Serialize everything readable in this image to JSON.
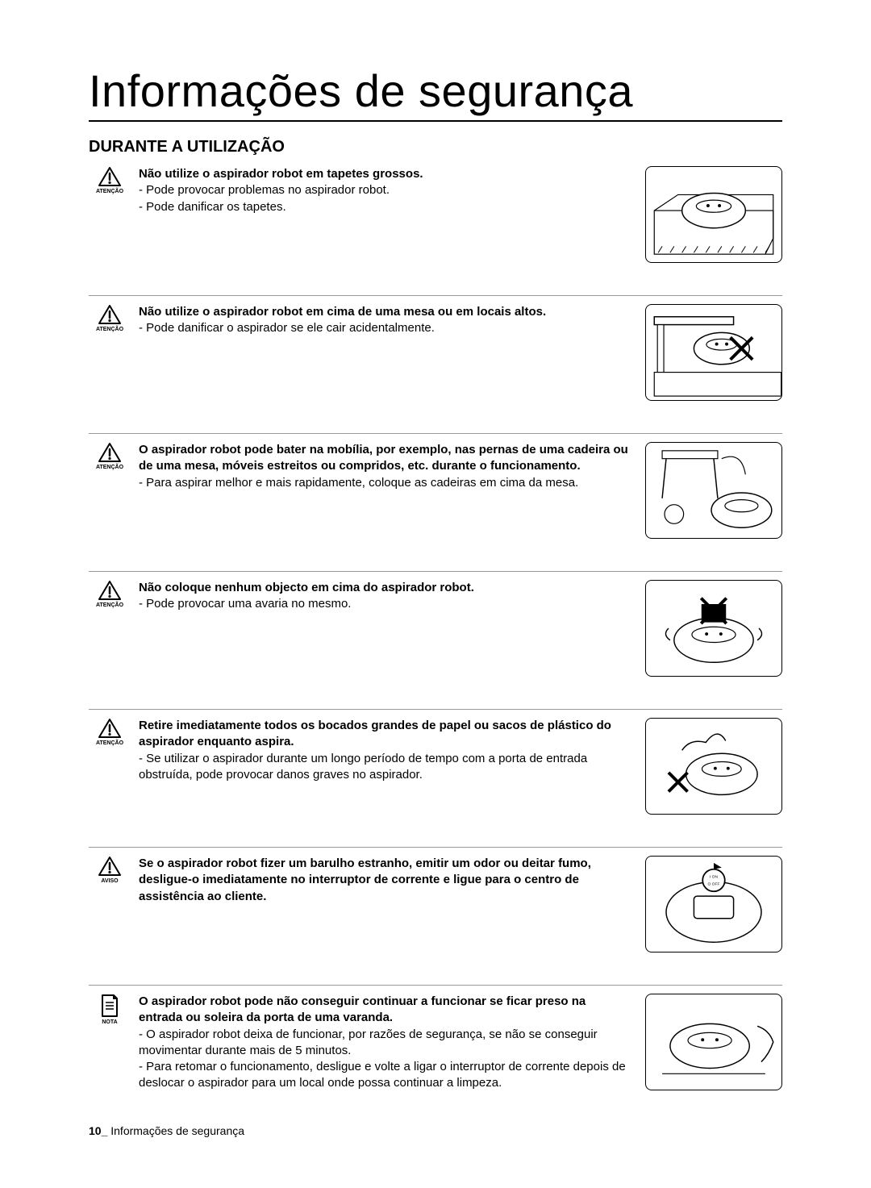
{
  "page": {
    "title": "Informações de segurança",
    "section": "DURANTE A UTILIZAÇÃO",
    "footer_page": "10_",
    "footer_text": "Informações de segurança"
  },
  "labels": {
    "atencao": "ATENÇÃO",
    "aviso": "AVISO",
    "nota": "NOTA"
  },
  "colors": {
    "text": "#000000",
    "border": "#999999",
    "page_bg": "#ffffff"
  },
  "typography": {
    "title_fontsize": 56,
    "section_fontsize": 20,
    "body_fontsize": 15,
    "icon_label_fontsize": 7,
    "footer_fontsize": 14
  },
  "items": [
    {
      "icon": "caution",
      "icon_label_key": "atencao",
      "bold": "Não utilize o aspirador robot em tapetes grossos.",
      "details": [
        "- Pode provocar problemas no aspirador robot.",
        "- Pode danificar os tapetes."
      ],
      "illustration": "robot-on-carpet"
    },
    {
      "icon": "caution",
      "icon_label_key": "atencao",
      "bold": "Não utilize o aspirador robot em cima de uma mesa ou em locais altos.",
      "details": [
        "- Pode danificar o aspirador se ele cair acidentalmente."
      ],
      "illustration": "robot-falling-table"
    },
    {
      "icon": "caution",
      "icon_label_key": "atencao",
      "bold": "O aspirador robot pode bater na mobília, por exemplo, nas pernas de uma cadeira ou de uma mesa, móveis estreitos ou compridos, etc. durante o funcionamento.",
      "details": [
        "- Para aspirar melhor e mais rapidamente, coloque as cadeiras em cima da mesa."
      ],
      "illustration": "robot-chair-legs"
    },
    {
      "icon": "caution",
      "icon_label_key": "atencao",
      "bold": "Não coloque nenhum objecto em cima do aspirador robot.",
      "details": [
        "- Pode provocar uma avaria no mesmo."
      ],
      "illustration": "robot-object-on-top"
    },
    {
      "icon": "caution",
      "icon_label_key": "atencao",
      "bold": "Retire imediatamente todos os bocados grandes de papel ou sacos de plástico do aspirador enquanto aspira.",
      "details": [
        "- Se utilizar o aspirador durante um longo período de tempo com a porta de entrada obstruída, pode provocar danos graves no aspirador."
      ],
      "illustration": "robot-paper-stuck"
    },
    {
      "icon": "caution",
      "icon_label_key": "aviso",
      "bold": "Se o aspirador robot fizer um barulho estranho, emitir um odor ou deitar fumo, desligue-o imediatamente no interruptor de corrente e ligue para o centro de assistência ao cliente.",
      "details": [],
      "illustration": "robot-power-switch"
    },
    {
      "icon": "note",
      "icon_label_key": "nota",
      "bold": "O aspirador robot pode não conseguir continuar a funcionar se ficar preso na entrada ou soleira da porta de uma varanda.",
      "details": [
        "- O aspirador robot deixa de funcionar, por razões de segurança, se não se conseguir movimentar durante mais de 5 minutos.",
        "- Para retomar o funcionamento, desligue e volte a ligar o interruptor de corrente depois de deslocar o aspirador para um local onde possa continuar a limpeza."
      ],
      "illustration": "robot-stuck-threshold"
    }
  ]
}
